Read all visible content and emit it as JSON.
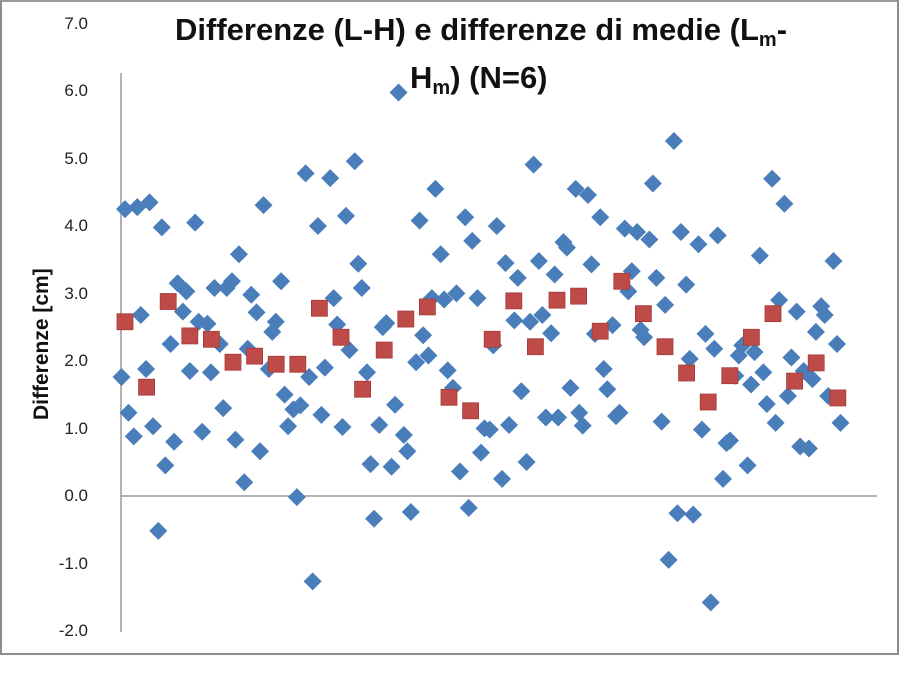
{
  "chart_data": {
    "type": "scatter",
    "title": "Differenze (L-H) e differenze di medie  (Lm-Hm)  (N=6)",
    "title_parts": {
      "line1_main": "Differenze (L-H) e differenze di medie  (L",
      "line1_sub": "m",
      "line1_end": "-",
      "line2_main": "H",
      "line2_sub": "m",
      "line2_end": ")  (N=6)"
    },
    "xlabel": "",
    "ylabel": "Differenze [cm]",
    "ylim": [
      -2.0,
      7.0
    ],
    "yticks": [
      "7.0",
      "6.0",
      "5.0",
      "4.0",
      "3.0",
      "2.0",
      "1.0",
      "0.0",
      "-1.0",
      "-2.0"
    ],
    "grid": false,
    "legend": "none",
    "x_axis_visible": false,
    "colors": {
      "differences": "#4a7ebb",
      "means": "#be4b48"
    },
    "series": [
      {
        "name": "Differenze (L-H)",
        "marker": "diamond",
        "color": "#4a7ebb",
        "points": [
          [
            1,
            1.78
          ],
          [
            1,
            4.27
          ],
          [
            1,
            1.25
          ],
          [
            2,
            0.9
          ],
          [
            2,
            4.3
          ],
          [
            2,
            2.7
          ],
          [
            3,
            1.9
          ],
          [
            3,
            4.37
          ],
          [
            3,
            1.05
          ],
          [
            4,
            -0.5
          ],
          [
            4,
            4.0
          ],
          [
            4,
            0.47
          ],
          [
            5,
            2.27
          ],
          [
            5,
            0.82
          ],
          [
            5,
            3.17
          ],
          [
            6,
            2.75
          ],
          [
            6,
            3.05
          ],
          [
            6,
            1.87
          ],
          [
            7,
            4.07
          ],
          [
            7,
            2.6
          ],
          [
            7,
            0.97
          ],
          [
            8,
            2.57
          ],
          [
            8,
            1.85
          ],
          [
            8,
            3.1
          ],
          [
            9,
            2.27
          ],
          [
            9,
            1.32
          ],
          [
            9,
            3.1
          ],
          [
            10,
            3.2
          ],
          [
            10,
            0.85
          ],
          [
            10,
            3.6
          ],
          [
            11,
            0.22
          ],
          [
            11,
            2.2
          ],
          [
            11,
            3.0
          ],
          [
            12,
            2.74
          ],
          [
            12,
            0.68
          ],
          [
            12,
            4.33
          ],
          [
            13,
            1.9
          ],
          [
            13,
            2.45
          ],
          [
            13,
            2.6
          ],
          [
            14,
            3.2
          ],
          [
            14,
            1.52
          ],
          [
            14,
            1.05
          ],
          [
            15,
            1.3
          ],
          [
            15,
            0.0
          ],
          [
            15,
            1.36
          ],
          [
            16,
            4.8
          ],
          [
            16,
            1.78
          ],
          [
            16,
            -1.25
          ],
          [
            17,
            4.02
          ],
          [
            17,
            1.22
          ],
          [
            17,
            1.92
          ],
          [
            18,
            4.73
          ],
          [
            18,
            2.95
          ],
          [
            18,
            2.56
          ],
          [
            19,
            1.04
          ],
          [
            19,
            4.17
          ],
          [
            19,
            2.18
          ],
          [
            20,
            4.98
          ],
          [
            20,
            3.46
          ],
          [
            20,
            3.1
          ],
          [
            21,
            1.85
          ],
          [
            21,
            0.49
          ],
          [
            21,
            -0.32
          ],
          [
            22,
            1.07
          ],
          [
            22,
            2.52
          ],
          [
            22,
            2.58
          ],
          [
            23,
            0.45
          ],
          [
            23,
            1.37
          ],
          [
            23,
            6.0
          ],
          [
            24,
            0.92
          ],
          [
            24,
            0.68
          ],
          [
            24,
            -0.22
          ],
          [
            25,
            2.0
          ],
          [
            25,
            4.1
          ],
          [
            25,
            2.4
          ],
          [
            26,
            2.1
          ],
          [
            26,
            2.95
          ],
          [
            26,
            4.57
          ],
          [
            27,
            3.6
          ],
          [
            27,
            2.93
          ],
          [
            27,
            1.88
          ],
          [
            28,
            1.62
          ],
          [
            28,
            3.02
          ],
          [
            28,
            0.38
          ],
          [
            29,
            4.15
          ],
          [
            29,
            -0.16
          ],
          [
            29,
            3.8
          ],
          [
            30,
            2.95
          ],
          [
            30,
            0.66
          ],
          [
            30,
            1.02
          ],
          [
            31,
            1.0
          ],
          [
            31,
            2.25
          ],
          [
            31,
            4.02
          ],
          [
            32,
            0.27
          ],
          [
            32,
            3.47
          ],
          [
            32,
            1.07
          ],
          [
            33,
            2.62
          ],
          [
            33,
            3.25
          ],
          [
            33,
            1.57
          ],
          [
            34,
            0.52
          ],
          [
            34,
            2.6
          ],
          [
            34,
            4.93
          ],
          [
            35,
            3.5
          ],
          [
            35,
            2.7
          ],
          [
            35,
            1.18
          ],
          [
            36,
            2.43
          ],
          [
            36,
            3.3
          ],
          [
            36,
            1.18
          ],
          [
            37,
            3.78
          ],
          [
            37,
            3.7
          ],
          [
            37,
            1.62
          ],
          [
            38,
            4.57
          ],
          [
            38,
            1.25
          ],
          [
            38,
            1.06
          ],
          [
            39,
            4.48
          ],
          [
            39,
            3.45
          ],
          [
            39,
            2.42
          ],
          [
            40,
            4.15
          ],
          [
            40,
            1.9
          ],
          [
            40,
            1.6
          ],
          [
            41,
            2.55
          ],
          [
            41,
            1.2
          ],
          [
            41,
            1.25
          ],
          [
            42,
            3.98
          ],
          [
            42,
            3.05
          ],
          [
            42,
            3.35
          ],
          [
            43,
            3.93
          ],
          [
            43,
            2.48
          ],
          [
            43,
            2.37
          ],
          [
            44,
            3.82
          ],
          [
            44,
            4.65
          ],
          [
            44,
            3.25
          ],
          [
            45,
            1.12
          ],
          [
            45,
            2.85
          ],
          [
            45,
            -0.93
          ],
          [
            46,
            5.28
          ],
          [
            46,
            -0.24
          ],
          [
            46,
            3.93
          ],
          [
            47,
            3.15
          ],
          [
            47,
            2.05
          ],
          [
            47,
            -0.26
          ],
          [
            48,
            3.75
          ],
          [
            48,
            1.0
          ],
          [
            48,
            2.42
          ],
          [
            49,
            -1.56
          ],
          [
            49,
            2.2
          ],
          [
            49,
            3.88
          ],
          [
            50,
            0.27
          ],
          [
            50,
            0.8
          ],
          [
            50,
            0.84
          ],
          [
            51,
            1.8
          ],
          [
            51,
            2.1
          ],
          [
            51,
            2.25
          ],
          [
            52,
            0.47
          ],
          [
            52,
            1.67
          ],
          [
            52,
            2.15
          ],
          [
            53,
            3.58
          ],
          [
            53,
            1.85
          ],
          [
            53,
            1.38
          ],
          [
            54,
            4.72
          ],
          [
            54,
            1.1
          ],
          [
            54,
            2.92
          ],
          [
            55,
            4.35
          ],
          [
            55,
            1.5
          ],
          [
            55,
            2.07
          ],
          [
            56,
            2.75
          ],
          [
            56,
            0.75
          ],
          [
            56,
            1.87
          ],
          [
            57,
            0.72
          ],
          [
            57,
            1.75
          ],
          [
            57,
            2.45
          ],
          [
            58,
            2.83
          ],
          [
            58,
            2.7
          ],
          [
            58,
            1.5
          ],
          [
            59,
            3.5
          ],
          [
            59,
            2.27
          ],
          [
            59,
            1.1
          ]
        ]
      },
      {
        "name": "Differenze di medie (Lm-Hm)",
        "marker": "square",
        "color": "#be4b48",
        "values": [
          2.6,
          1.63,
          2.9,
          2.39,
          2.34,
          2.0,
          2.09,
          1.97,
          1.97,
          2.8,
          2.37,
          1.6,
          2.18,
          2.64,
          2.82,
          1.48,
          1.28,
          2.34,
          2.91,
          2.23,
          2.92,
          2.98,
          2.46,
          3.2,
          2.72,
          2.23,
          1.84,
          1.41,
          1.8,
          2.37,
          2.72,
          1.72,
          1.99,
          1.47
        ]
      }
    ]
  }
}
